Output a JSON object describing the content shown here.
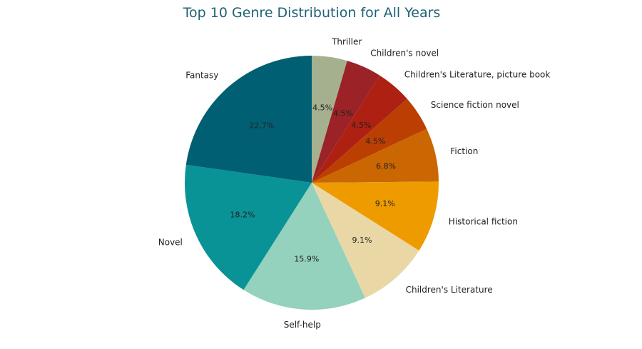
{
  "chart_data": {
    "type": "pie",
    "title": "Top 10 Genre Distribution for All Years",
    "start_angle_deg": 90,
    "direction": "clockwise",
    "slices": [
      {
        "label": "Thriller",
        "value": 4.5,
        "display": "4.5%",
        "color": "#a5b08f"
      },
      {
        "label": "Children's novel",
        "value": 4.5,
        "display": "4.5%",
        "color": "#9b2226"
      },
      {
        "label": "Children's Literature, picture book",
        "value": 4.5,
        "display": "4.5%",
        "color": "#ae2012"
      },
      {
        "label": "Science fiction novel",
        "value": 4.5,
        "display": "4.5%",
        "color": "#bb3e03"
      },
      {
        "label": "Fiction",
        "value": 6.8,
        "display": "6.8%",
        "color": "#ca6702"
      },
      {
        "label": "Historical fiction",
        "value": 9.1,
        "display": "9.1%",
        "color": "#ee9b00"
      },
      {
        "label": "Children's Literature",
        "value": 9.1,
        "display": "9.1%",
        "color": "#e9d8a6"
      },
      {
        "label": "Self-help",
        "value": 15.9,
        "display": "15.9%",
        "color": "#94d2bd"
      },
      {
        "label": "Novel",
        "value": 18.2,
        "display": "18.2%",
        "color": "#0a9396"
      },
      {
        "label": "Fantasy",
        "value": 22.7,
        "display": "22.7%",
        "color": "#005f73"
      }
    ]
  }
}
